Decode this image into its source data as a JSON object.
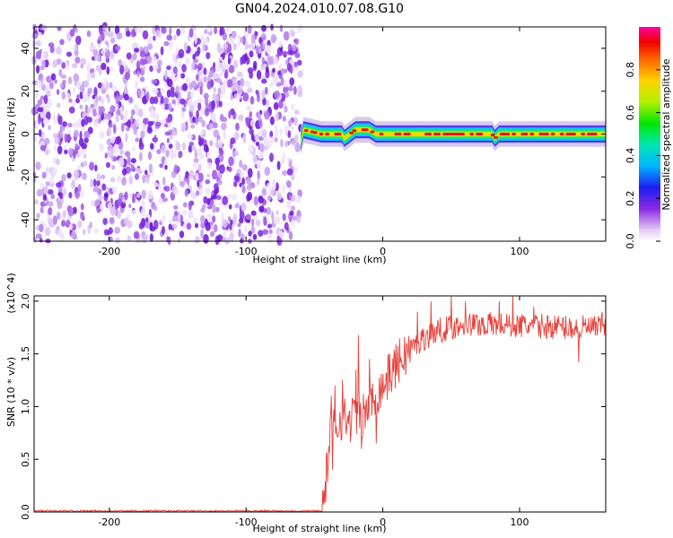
{
  "title": "GN04.2024.010.07.08.G10",
  "chart_data": [
    {
      "type": "heatmap",
      "xlabel": "Height of straight line (km)",
      "ylabel": "Frequency (Hz)",
      "xlim": [
        -255,
        163
      ],
      "ylim": [
        -50,
        50
      ],
      "xticks": [
        -200,
        -100,
        0,
        100
      ],
      "yticks": [
        -40,
        -20,
        0,
        20,
        40
      ],
      "colorbar": {
        "label": "Normalized spectral amplitude",
        "range": [
          0.0,
          1.0
        ],
        "ticks": [
          "0.0",
          "0.2",
          "0.4",
          "0.6",
          "0.8"
        ]
      },
      "regions": [
        {
          "name": "noise",
          "x": [
            -255,
            -60
          ],
          "freq": [
            -50,
            50
          ],
          "amplitude": [
            0.1,
            0.3
          ]
        },
        {
          "name": "carrier",
          "x": [
            -60,
            163
          ],
          "freq_center": 0,
          "amplitude_peak": 1.0
        }
      ],
      "carrier_offsets": [
        [
          -60,
          -4
        ],
        [
          -58,
          2
        ],
        [
          -45,
          0
        ],
        [
          -30,
          0
        ],
        [
          -28,
          -2
        ],
        [
          -24,
          0
        ],
        [
          -20,
          2
        ],
        [
          -10,
          2
        ],
        [
          -5,
          0
        ],
        [
          80,
          0
        ],
        [
          82,
          -2
        ],
        [
          85,
          0
        ],
        [
          163,
          0
        ]
      ]
    },
    {
      "type": "line",
      "xlabel": "Height of straight line (km)",
      "ylabel": "SNR (10 * v/v)",
      "y_multiplier": "(x10^4)",
      "xlim": [
        -255,
        163
      ],
      "ylim": [
        0.0,
        2.05
      ],
      "xticks": [
        -200,
        -100,
        0,
        100
      ],
      "yticks": [
        "0.0",
        "0.5",
        "1.0",
        "1.5",
        "2.0"
      ],
      "color": "#e8413b",
      "x": [
        -255,
        -45,
        -42,
        -40,
        -38,
        -35,
        -30,
        -25,
        -20,
        -15,
        -10,
        -5,
        0,
        10,
        20,
        30,
        40,
        50,
        60,
        80,
        100,
        120,
        140,
        163
      ],
      "values": [
        0.01,
        0.01,
        0.2,
        0.55,
        0.75,
        0.8,
        0.9,
        0.85,
        0.95,
        0.9,
        1.0,
        1.1,
        1.2,
        1.4,
        1.55,
        1.65,
        1.72,
        1.75,
        1.78,
        1.78,
        1.77,
        1.76,
        1.75,
        1.74
      ],
      "spikes": [
        [
          -38,
          1.1
        ],
        [
          -37,
          0.4
        ],
        [
          -35,
          1.2
        ],
        [
          -30,
          1.25
        ],
        [
          -20,
          1.35
        ],
        [
          -18,
          1.68
        ],
        [
          -16,
          0.6
        ],
        [
          -10,
          1.45
        ],
        [
          -5,
          0.65
        ],
        [
          5,
          1.5
        ],
        [
          25,
          1.9
        ],
        [
          35,
          2.0
        ],
        [
          50,
          2.05
        ],
        [
          60,
          2.0
        ],
        [
          85,
          2.0
        ],
        [
          95,
          2.05
        ],
        [
          110,
          1.95
        ],
        [
          143,
          1.42
        ],
        [
          160,
          1.9
        ]
      ]
    }
  ]
}
